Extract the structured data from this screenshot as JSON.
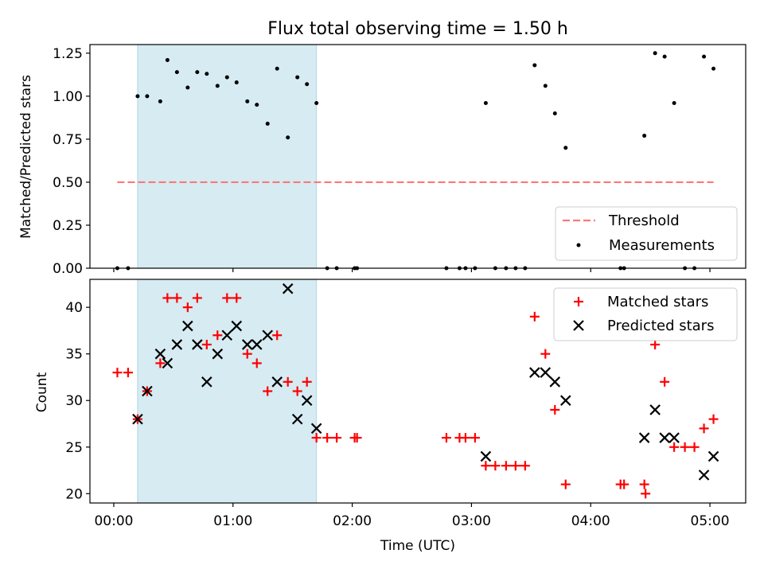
{
  "chart_data": [
    {
      "type": "scatter",
      "title": "Flux total observing time = 1.50 h",
      "xlabel": "",
      "ylabel": "Matched/Predicted stars",
      "xlim": [
        -0.2,
        5.3
      ],
      "ylim": [
        0.0,
        1.3
      ],
      "xticks": [
        0,
        1,
        2,
        3,
        4,
        5
      ],
      "yticks": [
        0.0,
        0.25,
        0.5,
        0.75,
        1.0,
        1.25
      ],
      "ytick_labels": [
        "0.00",
        "0.25",
        "0.50",
        "0.75",
        "1.00",
        "1.25"
      ],
      "shaded_span": {
        "x0": 0.2,
        "x1": 1.7,
        "color": "#add8e6"
      },
      "threshold": {
        "name": "Threshold",
        "value": 0.5,
        "x0": 0.03,
        "x1": 5.03,
        "color": "#ff7777",
        "style": "dashed"
      },
      "series": [
        {
          "name": "Measurements",
          "marker": "dot",
          "color": "#000000",
          "x": [
            0.03,
            0.12,
            0.2,
            0.28,
            0.39,
            0.45,
            0.53,
            0.62,
            0.7,
            0.78,
            0.87,
            0.95,
            1.03,
            1.12,
            1.2,
            1.29,
            1.37,
            1.46,
            1.54,
            1.62,
            1.7,
            1.79,
            1.87,
            2.02,
            2.04,
            2.79,
            2.9,
            2.95,
            3.03,
            3.12,
            3.2,
            3.29,
            3.37,
            3.45,
            3.53,
            3.62,
            3.7,
            3.79,
            4.25,
            4.28,
            4.45,
            4.54,
            4.62,
            4.7,
            4.79,
            4.87,
            4.95,
            5.03
          ],
          "y": [
            0.0,
            0.0,
            1.0,
            1.0,
            0.97,
            1.21,
            1.14,
            1.05,
            1.14,
            1.13,
            1.06,
            1.11,
            1.08,
            0.97,
            0.95,
            0.84,
            1.16,
            0.76,
            1.11,
            1.07,
            0.96,
            0.0,
            0.0,
            0.0,
            0.0,
            0.0,
            0.0,
            0.0,
            0.0,
            0.96,
            0.0,
            0.0,
            0.0,
            0.0,
            1.18,
            1.06,
            0.9,
            0.7,
            0.0,
            0.0,
            0.77,
            1.25,
            1.23,
            0.96,
            0.0,
            0.0,
            1.23,
            1.16
          ]
        }
      ],
      "legend": {
        "entries": [
          "Threshold",
          "Measurements"
        ],
        "placement": "lower-right"
      }
    },
    {
      "type": "scatter",
      "title": "",
      "xlabel": "Time (UTC)",
      "ylabel": "Count",
      "xlim": [
        -0.2,
        5.3
      ],
      "ylim": [
        19,
        43
      ],
      "xticks": [
        0,
        1,
        2,
        3,
        4,
        5
      ],
      "xtick_labels": [
        "00:00",
        "01:00",
        "02:00",
        "03:00",
        "04:00",
        "05:00"
      ],
      "yticks": [
        20,
        25,
        30,
        35,
        40
      ],
      "ytick_labels": [
        "20",
        "25",
        "30",
        "35",
        "40"
      ],
      "shaded_span": {
        "x0": 0.2,
        "x1": 1.7,
        "color": "#add8e6"
      },
      "series": [
        {
          "name": "Matched stars",
          "marker": "plus",
          "color": "#ff0000",
          "x": [
            0.03,
            0.12,
            0.2,
            0.28,
            0.39,
            0.45,
            0.53,
            0.62,
            0.7,
            0.78,
            0.87,
            0.95,
            1.03,
            1.12,
            1.2,
            1.29,
            1.37,
            1.46,
            1.54,
            1.62,
            1.7,
            1.79,
            1.87,
            2.02,
            2.04,
            2.79,
            2.9,
            2.95,
            3.03,
            3.12,
            3.2,
            3.29,
            3.37,
            3.45,
            3.53,
            3.62,
            3.7,
            3.79,
            4.25,
            4.28,
            4.45,
            4.46,
            4.54,
            4.62,
            4.7,
            4.79,
            4.87,
            4.95,
            5.03
          ],
          "y": [
            33,
            33,
            28,
            31,
            34,
            41,
            41,
            40,
            41,
            36,
            37,
            41,
            41,
            35,
            34,
            31,
            37,
            32,
            31,
            32,
            26,
            26,
            26,
            26,
            26,
            26,
            26,
            26,
            26,
            23,
            23,
            23,
            23,
            23,
            39,
            35,
            29,
            21,
            21,
            21,
            21,
            20,
            36,
            32,
            25,
            25,
            25,
            27,
            28
          ]
        },
        {
          "name": "Predicted stars",
          "marker": "x",
          "color": "#000000",
          "x": [
            0.2,
            0.28,
            0.39,
            0.45,
            0.53,
            0.62,
            0.7,
            0.78,
            0.87,
            0.95,
            1.03,
            1.12,
            1.2,
            1.29,
            1.37,
            1.46,
            1.54,
            1.62,
            1.7,
            3.12,
            3.53,
            3.62,
            3.7,
            3.79,
            4.45,
            4.54,
            4.62,
            4.7,
            4.95,
            5.03
          ],
          "y": [
            28,
            31,
            35,
            34,
            36,
            38,
            36,
            32,
            35,
            37,
            38,
            36,
            36,
            37,
            32,
            42,
            28,
            30,
            27,
            24,
            33,
            33,
            32,
            30,
            26,
            29,
            26,
            26,
            22,
            24
          ]
        }
      ],
      "legend": {
        "entries": [
          "Matched stars",
          "Predicted stars"
        ],
        "placement": "upper-right"
      }
    }
  ]
}
